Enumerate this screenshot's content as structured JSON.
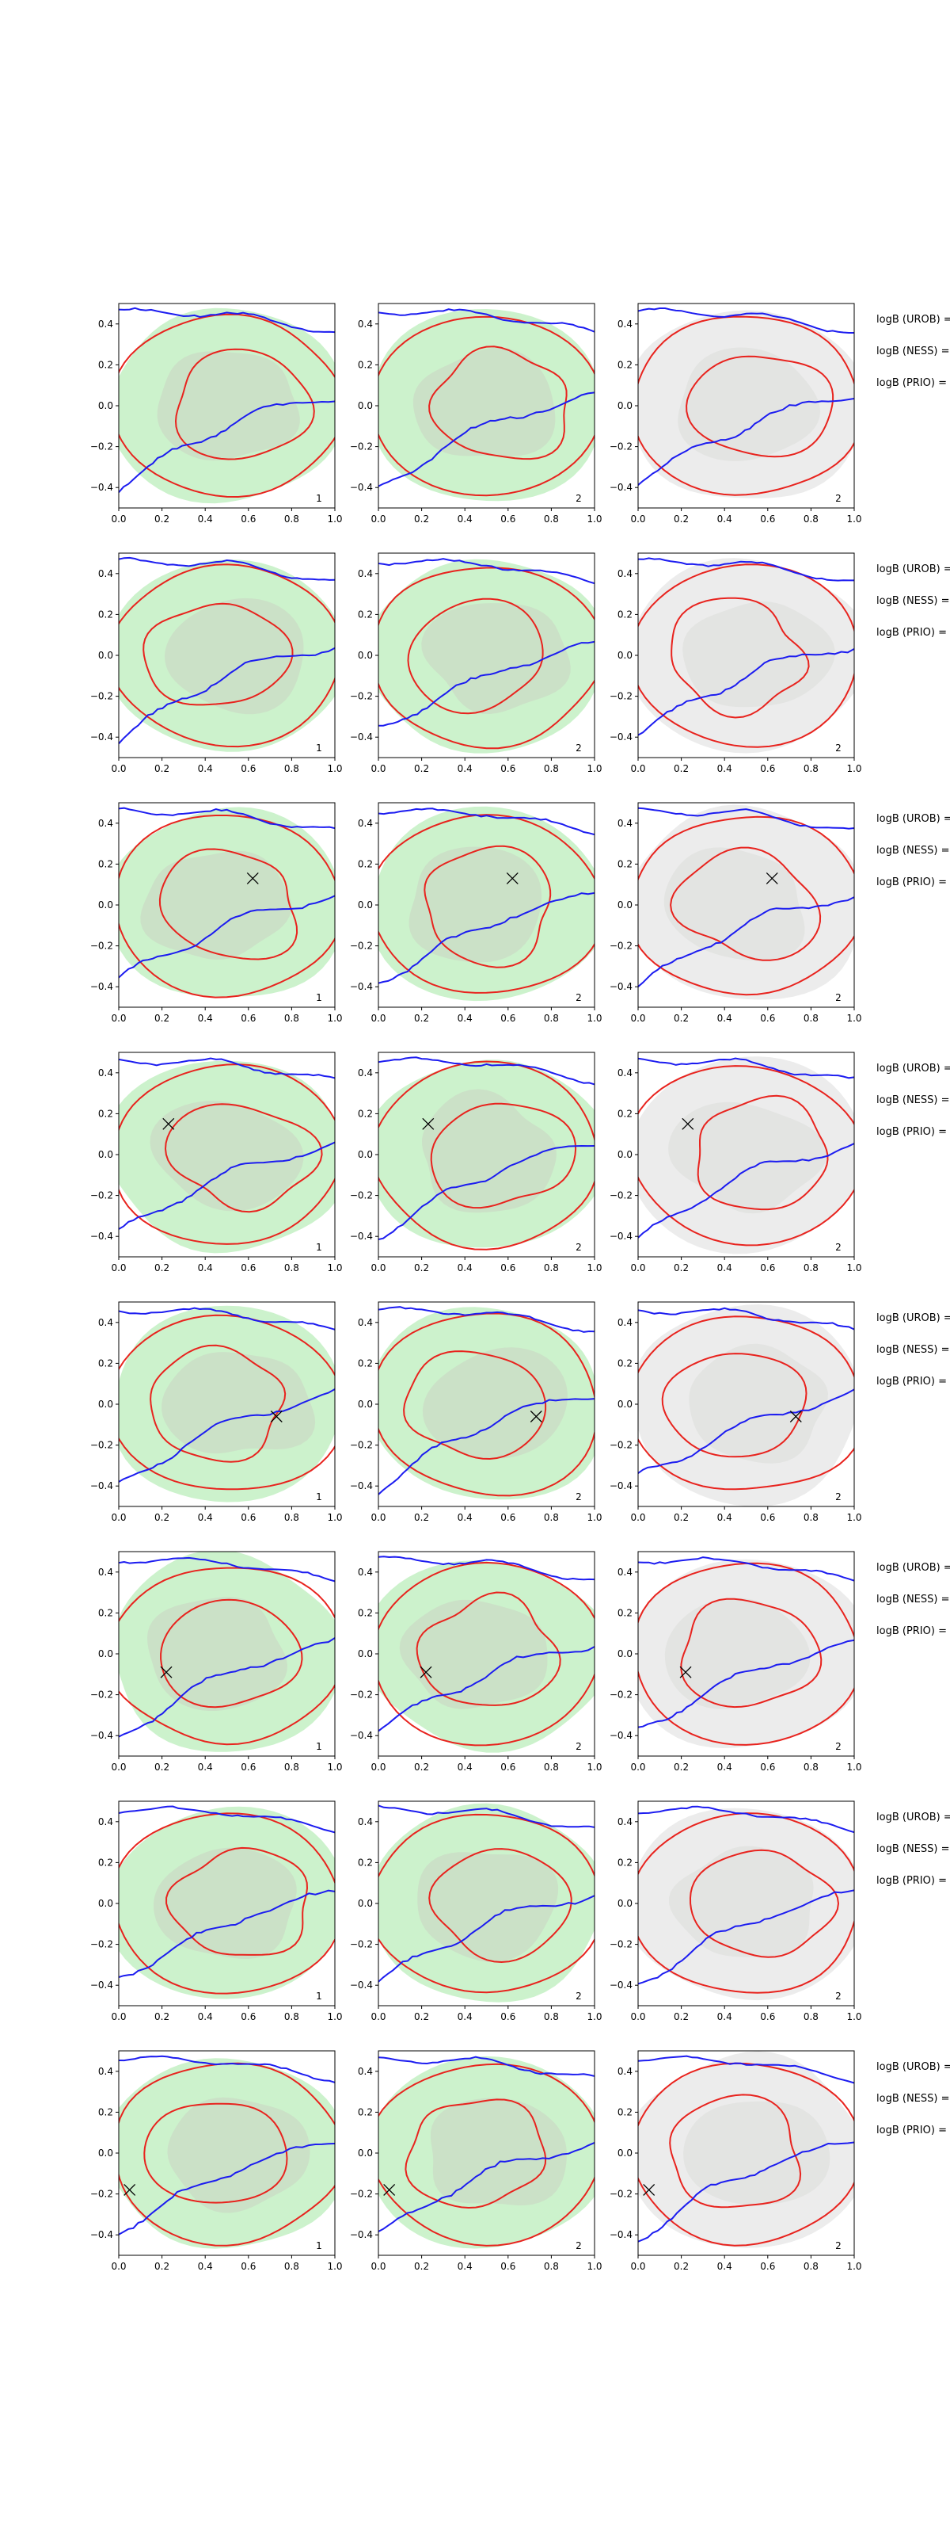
{
  "figure": {
    "description_labels": [
      "logB (UROB) =",
      "logB (NESS) =",
      "logB (PRIO) ="
    ]
  },
  "chart_data": {
    "type": "contour-grid",
    "rows": 8,
    "cols": 3,
    "xlim": [
      0.0,
      1.0
    ],
    "ylim": [
      -0.5,
      0.5
    ],
    "x_ticks": [
      0.0,
      0.2,
      0.4,
      0.6,
      0.8,
      1.0
    ],
    "x_tick_labels": [
      "0.0",
      "0.2",
      "0.4",
      "0.6",
      "0.8",
      "1.0"
    ],
    "y_ticks": [
      -0.4,
      -0.2,
      0.0,
      0.2,
      0.4
    ],
    "y_tick_labels": [
      "−0.4",
      "−0.2",
      "0.0",
      "0.2",
      "0.4"
    ],
    "panel_labels": [
      "1",
      "2",
      "2"
    ],
    "side_labels": [
      "logB (UROB) =",
      "logB (NESS) =",
      "logB (PRIO) ="
    ],
    "markers": [
      null,
      null,
      {
        "x": 0.62,
        "y": 0.13
      },
      {
        "x": 0.23,
        "y": 0.15
      },
      {
        "x": 0.73,
        "y": -0.06
      },
      {
        "x": 0.22,
        "y": -0.09
      },
      null,
      {
        "x": 0.05,
        "y": -0.18
      }
    ],
    "colors": {
      "contour_red": "#e8231e",
      "contour_blue": "#1c1cf0",
      "fill_green": "#ccf2cc",
      "fill_grey": "#c9cbc2",
      "fill_light_grey": "#ececec"
    }
  }
}
